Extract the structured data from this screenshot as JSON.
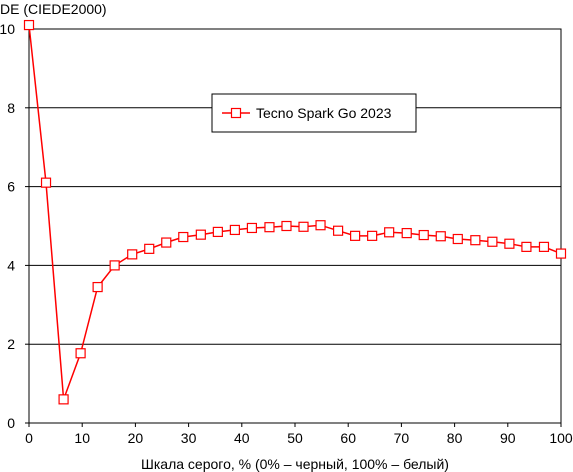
{
  "chart_data": {
    "type": "line",
    "title": "",
    "ylabel": "DE (CIEDE2000)",
    "xlabel": "Шкала серого, % (0% – черный, 100% – белый)",
    "xlim": [
      0,
      100
    ],
    "ylim": [
      0,
      10
    ],
    "xticks": [
      0,
      10,
      20,
      30,
      40,
      50,
      60,
      70,
      80,
      90,
      100
    ],
    "yticks": [
      0,
      2,
      4,
      6,
      8,
      10
    ],
    "grid": "horizontal",
    "legend_position": "top-center",
    "colors": {
      "series": "#ff0000",
      "grid": "#000000",
      "background": "#ffffff"
    },
    "series": [
      {
        "name": "Tecno Spark Go 2023",
        "marker": "hollow-square",
        "x": [
          0,
          3.2,
          6.5,
          9.7,
          12.9,
          16.1,
          19.4,
          22.6,
          25.8,
          29.0,
          32.3,
          35.5,
          38.7,
          41.9,
          45.2,
          48.4,
          51.6,
          54.8,
          58.1,
          61.3,
          64.5,
          67.7,
          71.0,
          74.2,
          77.4,
          80.6,
          83.9,
          87.1,
          90.3,
          93.5,
          96.8,
          100
        ],
        "y": [
          10.1,
          6.1,
          0.6,
          1.77,
          3.45,
          4.0,
          4.28,
          4.42,
          4.58,
          4.72,
          4.78,
          4.85,
          4.9,
          4.95,
          4.97,
          5.0,
          4.98,
          5.02,
          4.88,
          4.75,
          4.75,
          4.84,
          4.82,
          4.77,
          4.74,
          4.67,
          4.64,
          4.6,
          4.55,
          4.47,
          4.47,
          4.3
        ]
      }
    ]
  }
}
